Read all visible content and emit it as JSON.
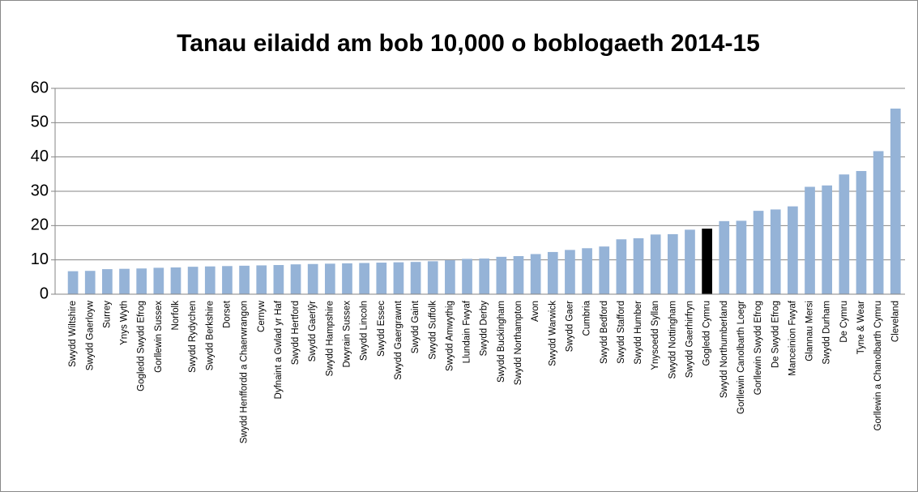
{
  "chart_data": {
    "type": "bar",
    "title": "Tanau eilaidd am bob 10,000 o boblogaeth 2014-15",
    "categories": [
      "Swydd Wiltshire",
      "Swydd Gaerloyw",
      "Surrey",
      "Ynys Wyth",
      "Gogledd Swydd Efrog",
      "Gorllewin Sussex",
      "Norfolk",
      "Swydd Rydychen",
      "Swydd Berkshire",
      "Dorset",
      "Swydd Henffordd a Chaerwrangon",
      "Cernyw",
      "Dyfnaint a Gwlad yr Haf",
      "Swydd Hertford",
      "Swydd Gaerlŷr",
      "Swydd Hampshire",
      "Dwyrain Sussex",
      "Swydd Lincoln",
      "Swydd Essec",
      "Swydd Gaergrawnt",
      "Swydd Gaint",
      "Swydd Suffolk",
      "Swydd Amwythig",
      "Llundain Fwyaf",
      "Swydd Derby",
      "Swydd Buckingham",
      "Swydd Northampton",
      "Avon",
      "Swydd Warwick",
      "Swydd Gaer",
      "Cumbria",
      "Swydd Bedford",
      "Swydd Stafford",
      "Swydd Humber",
      "Ynysoedd Syllan",
      "Swydd Nottingham",
      "Swydd Gaerhirfryn",
      "Gogledd Cymru",
      "Swydd Northumberland",
      "Gorllewin Canolbarth Loegr",
      "Gorllewin Swydd Efrog",
      "De Swydd Efrog",
      "Manceinion Fwyaf",
      "Glannau Mersi",
      "Swydd Durham",
      "De Cymru",
      "Tyne & Wear",
      "Gorllewin a Chanolbarth Cymru",
      "Cleveland"
    ],
    "values": [
      6.7,
      6.8,
      7.3,
      7.4,
      7.5,
      7.7,
      7.8,
      8.0,
      8.1,
      8.2,
      8.3,
      8.4,
      8.5,
      8.7,
      8.8,
      8.9,
      9.0,
      9.1,
      9.2,
      9.3,
      9.4,
      9.6,
      9.9,
      10.3,
      10.4,
      10.9,
      11.1,
      11.7,
      12.3,
      12.9,
      13.4,
      13.9,
      16.0,
      16.3,
      17.4,
      17.5,
      18.8,
      19.1,
      21.3,
      21.4,
      24.3,
      24.7,
      25.6,
      31.3,
      31.7,
      34.9,
      35.9,
      41.7,
      54.1
    ],
    "color": "#95b3d7",
    "highlight": {
      "index": 37,
      "color": "#000000"
    },
    "ylim": [
      0,
      60
    ],
    "yticks": [
      0,
      10,
      20,
      30,
      40,
      50,
      60
    ],
    "grid": true
  }
}
